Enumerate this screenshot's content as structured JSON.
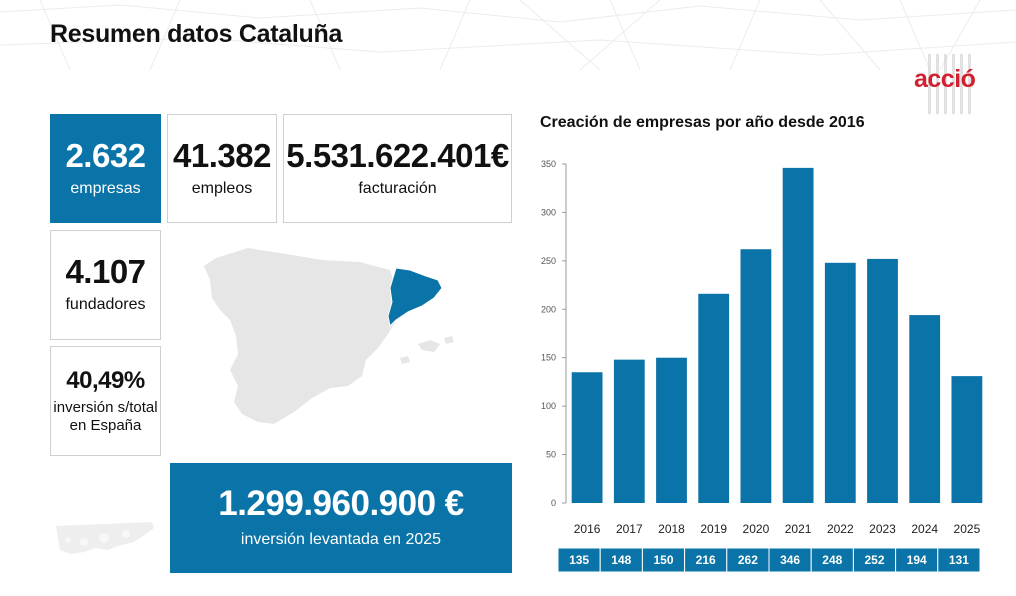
{
  "header": {
    "title": "Resumen datos Cataluña",
    "logo_text": "acció"
  },
  "stats": {
    "empresas": {
      "value": "2.632",
      "label": "empresas"
    },
    "empleos": {
      "value": "41.382",
      "label": "empleos"
    },
    "facturacion": {
      "value": "5.531.622.401€",
      "label": "facturación"
    },
    "fundadores": {
      "value": "4.107",
      "label": "fundadores"
    },
    "inversion_pct": {
      "value": "40,49%",
      "label": "inversión s/total en España"
    },
    "inversion_levantada": {
      "value": "1.299.960.900 €",
      "label": "inversión levantada en 2025"
    }
  },
  "colors": {
    "accent": "#0a73a7",
    "brand_red": "#d1202f",
    "map_gray": "#e6e6e6"
  },
  "chart_data": {
    "type": "bar",
    "title": "Creación de empresas por año desde 2016",
    "categories": [
      "2016",
      "2017",
      "2018",
      "2019",
      "2020",
      "2021",
      "2022",
      "2023",
      "2024",
      "2025"
    ],
    "values": [
      135,
      148,
      150,
      216,
      262,
      346,
      248,
      252,
      194,
      131
    ],
    "ylim": [
      0,
      350
    ],
    "yticks": [
      0,
      50,
      100,
      150,
      200,
      250,
      300,
      350
    ],
    "grid": false,
    "value_table": true
  }
}
